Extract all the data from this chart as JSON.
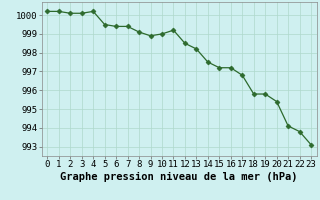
{
  "x": [
    0,
    1,
    2,
    3,
    4,
    5,
    6,
    7,
    8,
    9,
    10,
    11,
    12,
    13,
    14,
    15,
    16,
    17,
    18,
    19,
    20,
    21,
    22,
    23
  ],
  "y": [
    1000.2,
    1000.2,
    1000.1,
    1000.1,
    1000.2,
    999.5,
    999.4,
    999.4,
    999.1,
    998.9,
    999.0,
    999.2,
    998.5,
    998.2,
    997.5,
    997.2,
    997.2,
    996.8,
    995.8,
    995.8,
    995.4,
    994.1,
    993.8,
    993.1
  ],
  "line_color": "#2d6a2d",
  "marker": "D",
  "marker_size": 2.5,
  "bg_color": "#cff0f0",
  "grid_color": "#aed8cc",
  "xlabel": "Graphe pression niveau de la mer (hPa)",
  "xlabel_fontsize": 7.5,
  "tick_fontsize": 6.5,
  "ylim": [
    992.5,
    1000.7
  ],
  "xlim": [
    -0.5,
    23.5
  ],
  "yticks": [
    993,
    994,
    995,
    996,
    997,
    998,
    999,
    1000
  ],
  "xticks": [
    0,
    1,
    2,
    3,
    4,
    5,
    6,
    7,
    8,
    9,
    10,
    11,
    12,
    13,
    14,
    15,
    16,
    17,
    18,
    19,
    20,
    21,
    22,
    23
  ]
}
